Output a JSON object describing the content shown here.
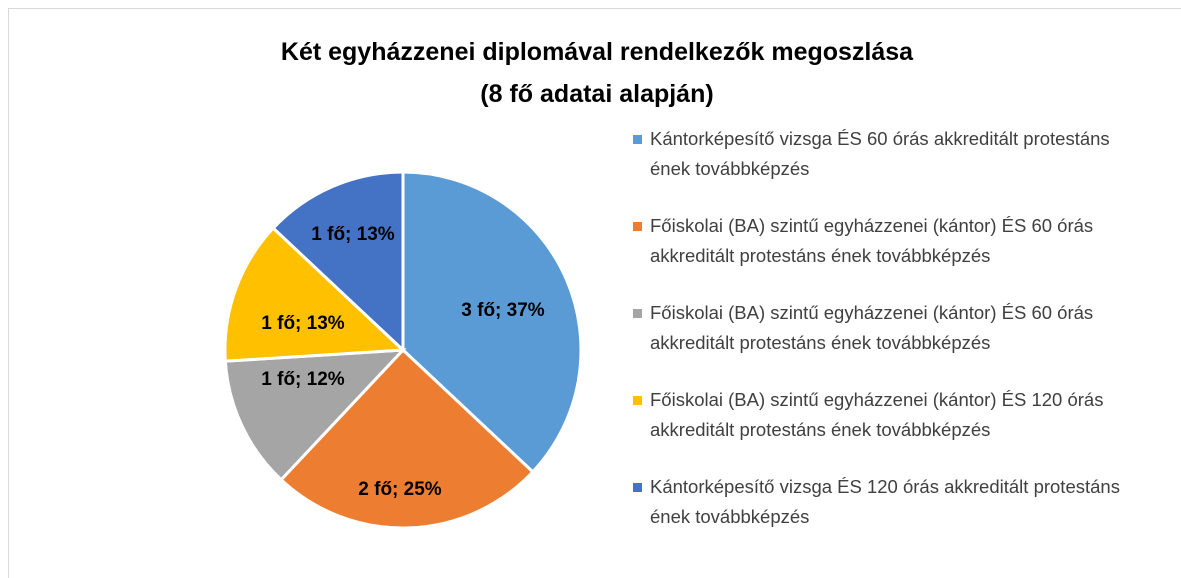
{
  "chart_data": {
    "type": "pie",
    "title": "Két egyházzenei diplomával rendelkezők megoszlása",
    "subtitle": "(8 fő adatai alapján)",
    "categories": [
      "Kántorképesítő vizsga ÉS 60 órás akkreditált protestáns ének továbbképzés",
      "Főiskolai (BA) szintű egyházzenei (kántor) ÉS 60 órás akkreditált protestáns ének továbbképzés",
      "Főiskolai (BA) szintű egyházzenei (kántor) ÉS 60 órás akkreditált protestáns ének továbbképzés",
      "Főiskolai (BA) szintű egyházzenei (kántor) ÉS 120 órás akkreditált protestáns ének továbbképzés",
      "Kántorképesítő vizsga ÉS 120 órás akkreditált protestáns ének továbbképzés"
    ],
    "values": [
      37,
      25,
      12,
      13,
      13
    ],
    "value_labels": [
      "3 fő; 37%",
      "2 fő; 25%",
      "1 fő; 12%",
      "1 fő; 13%",
      "1 fő; 13%"
    ],
    "colors": [
      "#5b9bd5",
      "#ed7d31",
      "#a5a5a5",
      "#ffc000",
      "#4472c4"
    ],
    "legend": "right"
  }
}
